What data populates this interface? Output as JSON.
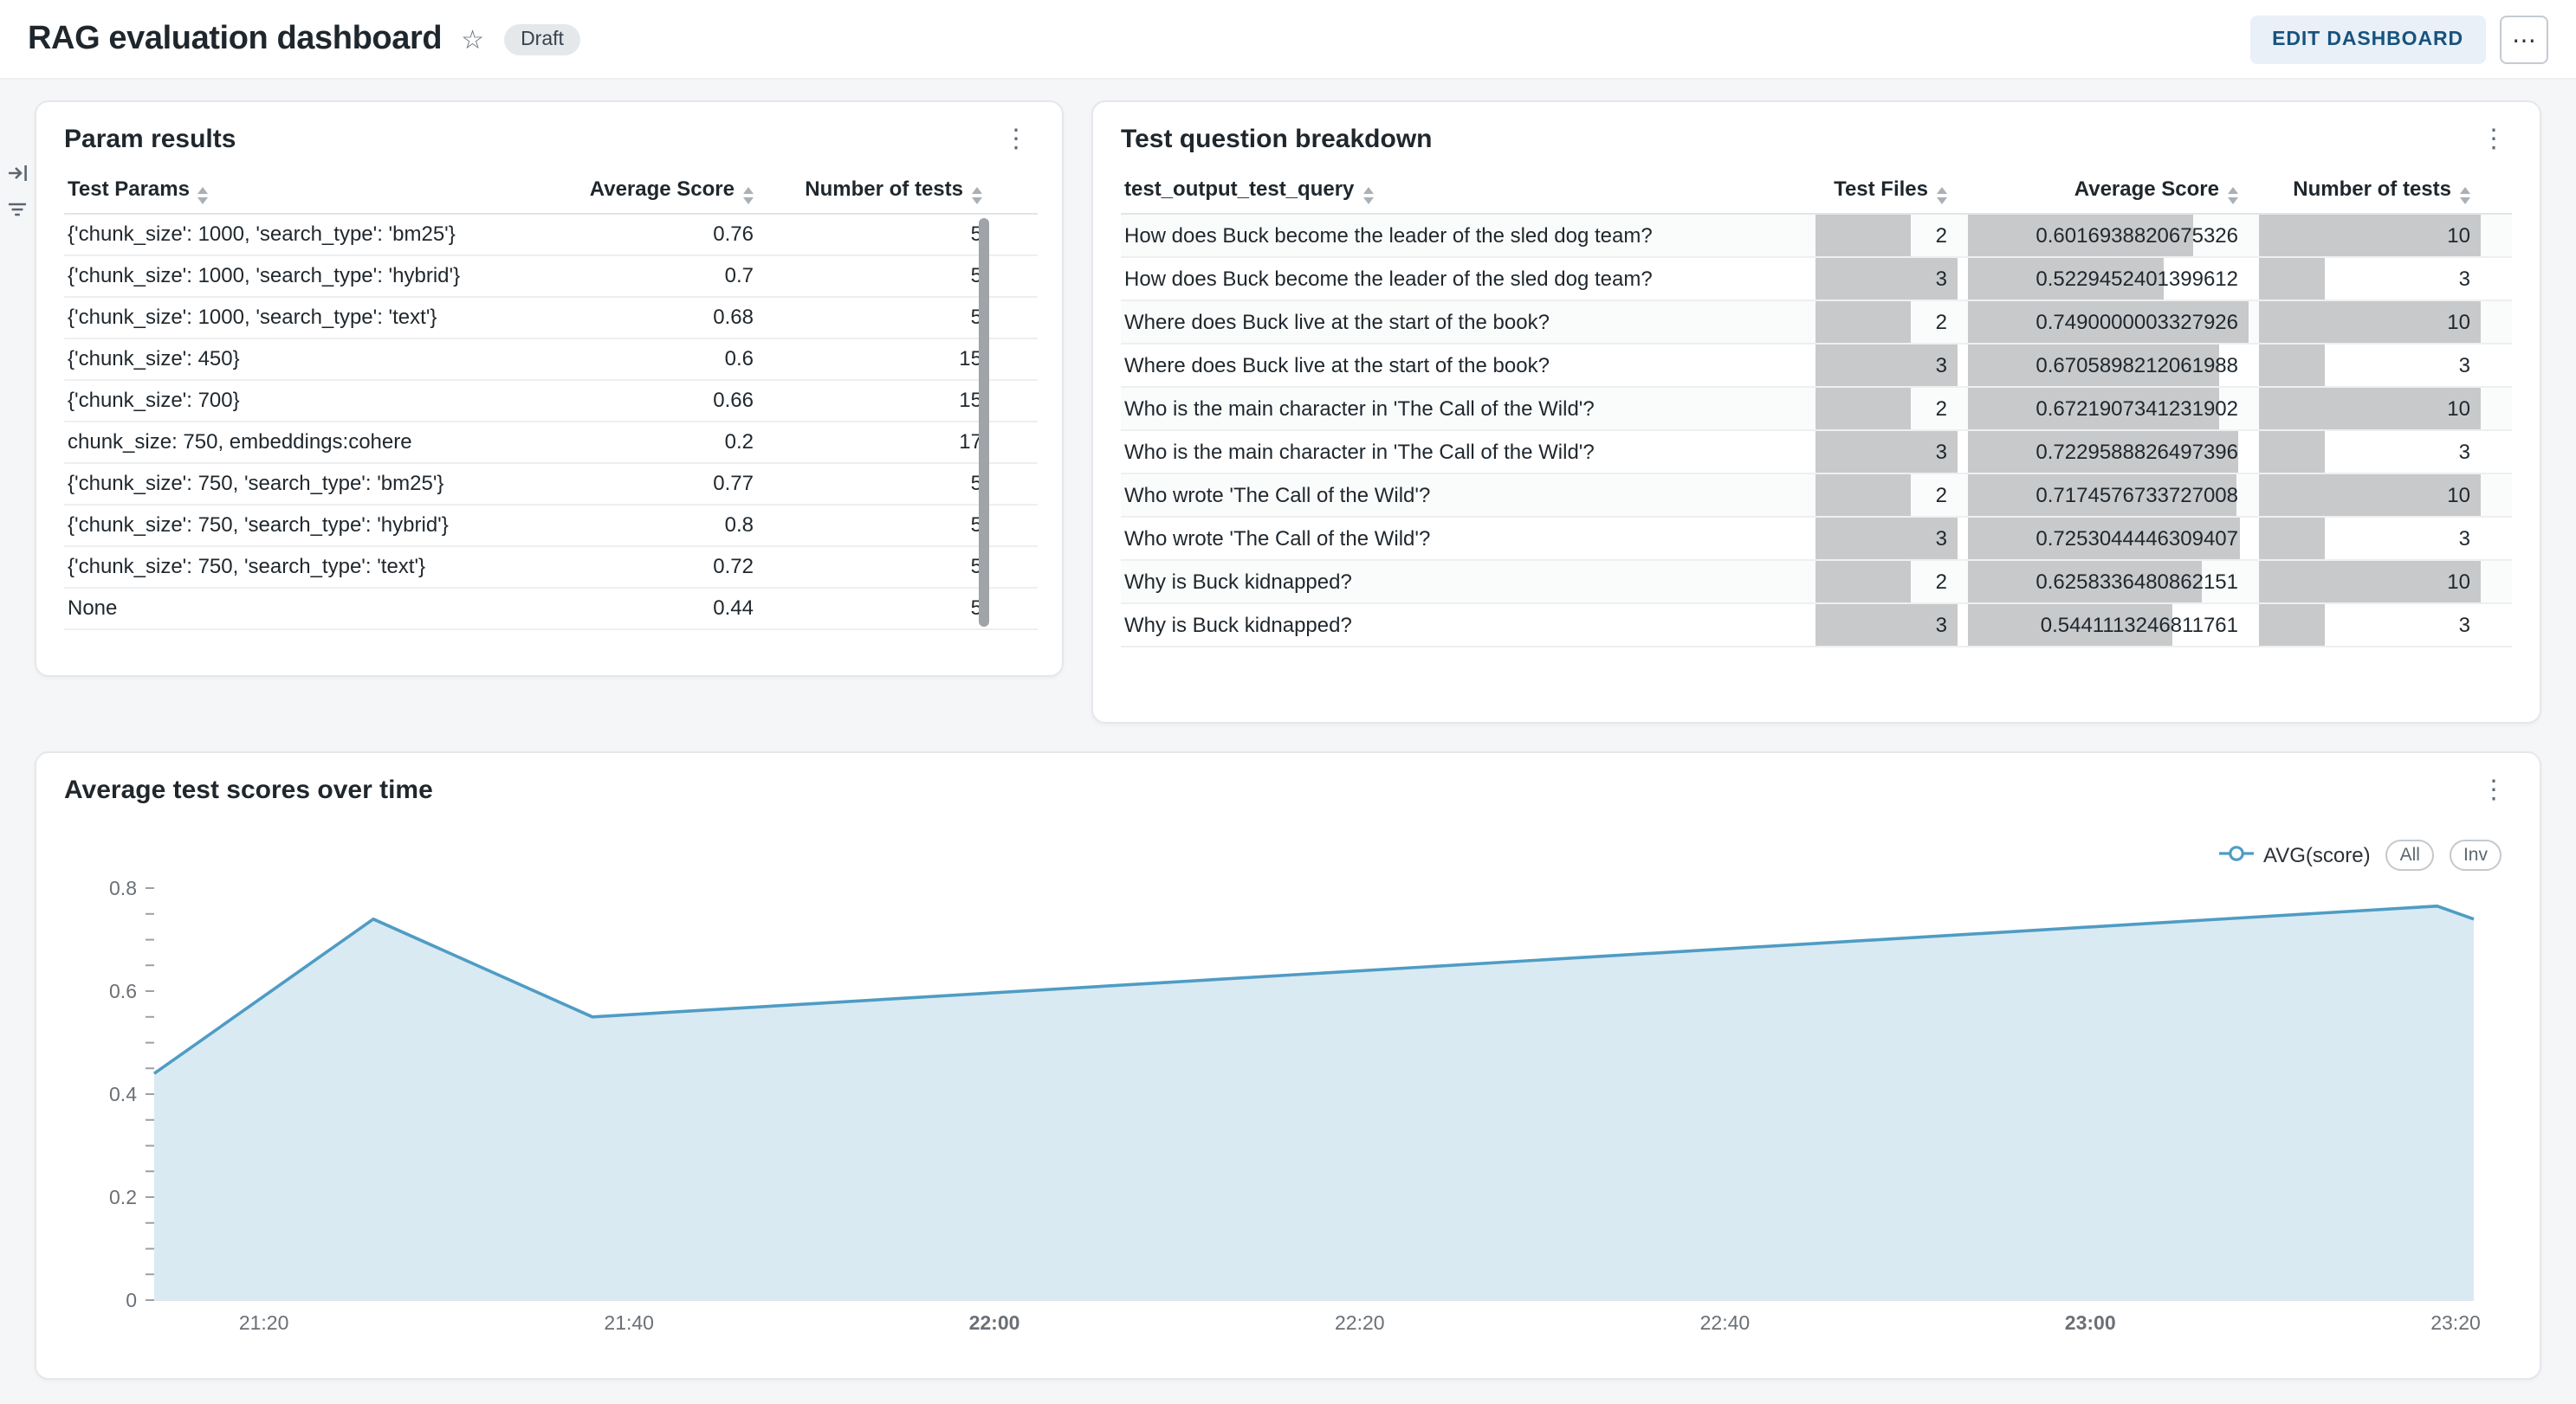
{
  "header": {
    "title": "RAG evaluation dashboard",
    "status_badge": "Draft",
    "edit_button": "EDIT DASHBOARD"
  },
  "icons": {
    "star": "☆",
    "kebab": "⋮",
    "ellipsis": "⋯"
  },
  "param_results": {
    "title": "Param results",
    "columns": [
      "Test Params",
      "Average Score",
      "Number of tests"
    ],
    "rows": [
      {
        "params": "{'chunk_size': 1000, 'search_type': 'bm25'}",
        "avg": "0.76",
        "n": "5"
      },
      {
        "params": "{'chunk_size': 1000, 'search_type': 'hybrid'}",
        "avg": "0.7",
        "n": "5"
      },
      {
        "params": "{'chunk_size': 1000, 'search_type': 'text'}",
        "avg": "0.68",
        "n": "5"
      },
      {
        "params": "{'chunk_size': 450}",
        "avg": "0.6",
        "n": "15"
      },
      {
        "params": "{'chunk_size': 700}",
        "avg": "0.66",
        "n": "15"
      },
      {
        "params": "chunk_size: 750, embeddings:cohere",
        "avg": "0.2",
        "n": "17"
      },
      {
        "params": "{'chunk_size': 750, 'search_type': 'bm25'}",
        "avg": "0.77",
        "n": "5"
      },
      {
        "params": "{'chunk_size': 750, 'search_type': 'hybrid'}",
        "avg": "0.8",
        "n": "5"
      },
      {
        "params": "{'chunk_size': 750, 'search_type': 'text'}",
        "avg": "0.72",
        "n": "5"
      },
      {
        "params": "None",
        "avg": "0.44",
        "n": "5"
      }
    ]
  },
  "question_breakdown": {
    "title": "Test question breakdown",
    "columns": [
      "test_output_test_query",
      "Test Files",
      "Average Score",
      "Number of tests"
    ],
    "bar_color": "#c7c9cb",
    "rows": [
      {
        "query": "How does Buck become the leader of the sled dog team?",
        "files": "2",
        "avg": "0.6016938820675326",
        "n": "10"
      },
      {
        "query": "How does Buck become the leader of the sled dog team?",
        "files": "3",
        "avg": "0.5229452401399612",
        "n": "3"
      },
      {
        "query": "Where does Buck live at the start of the book?",
        "files": "2",
        "avg": "0.7490000003327926",
        "n": "10"
      },
      {
        "query": "Where does Buck live at the start of the book?",
        "files": "3",
        "avg": "0.6705898212061988",
        "n": "3"
      },
      {
        "query": "Who is the main character in 'The Call of the Wild'?",
        "files": "2",
        "avg": "0.6721907341231902",
        "n": "10"
      },
      {
        "query": "Who is the main character in 'The Call of the Wild'?",
        "files": "3",
        "avg": "0.7229588826497396",
        "n": "3"
      },
      {
        "query": "Who wrote 'The Call of the Wild'?",
        "files": "2",
        "avg": "0.7174576733727008",
        "n": "10"
      },
      {
        "query": "Who wrote 'The Call of the Wild'?",
        "files": "3",
        "avg": "0.7253044446309407",
        "n": "3"
      },
      {
        "query": "Why is Buck kidnapped?",
        "files": "2",
        "avg": "0.6258336480862151",
        "n": "10"
      },
      {
        "query": "Why is Buck kidnapped?",
        "files": "3",
        "avg": "0.5441113246811761",
        "n": "3"
      }
    ]
  },
  "chart_data": {
    "type": "area",
    "title": "Average test scores over time",
    "series": [
      {
        "name": "AVG(score)",
        "points": [
          {
            "t": "21:14",
            "v": 0.44
          },
          {
            "t": "21:26",
            "v": 0.74
          },
          {
            "t": "21:38",
            "v": 0.55
          },
          {
            "t": "23:19",
            "v": 0.765
          },
          {
            "t": "23:21",
            "v": 0.74
          }
        ]
      }
    ],
    "x_domain": [
      "21:14",
      "23:21"
    ],
    "x_ticks": [
      {
        "label": "21:20",
        "bold": false
      },
      {
        "label": "21:40",
        "bold": false
      },
      {
        "label": "22:00",
        "bold": true
      },
      {
        "label": "22:20",
        "bold": false
      },
      {
        "label": "22:40",
        "bold": false
      },
      {
        "label": "23:00",
        "bold": true
      },
      {
        "label": "23:20",
        "bold": false
      }
    ],
    "ylim": [
      0,
      0.8
    ],
    "y_ticks": [
      "0",
      "0.2",
      "0.4",
      "0.6",
      "0.8"
    ],
    "y_minor_step": 0.05,
    "line_color": "#4f9cc4",
    "fill_color": "#d9eaf3",
    "grid": false,
    "legend_position": "top-right",
    "legend_controls": [
      "All",
      "Inv"
    ]
  }
}
